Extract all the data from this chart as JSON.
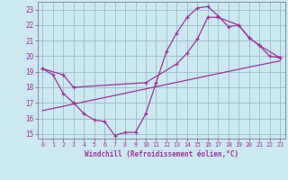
{
  "xlabel": "Windchill (Refroidissement éolien,°C)",
  "bg_color": "#cce8f0",
  "line_color": "#993399",
  "grid_color": "#99bbcc",
  "xlim": [
    -0.5,
    23.5
  ],
  "ylim": [
    14.7,
    23.5
  ],
  "xticks": [
    0,
    1,
    2,
    3,
    4,
    5,
    6,
    7,
    8,
    9,
    10,
    11,
    12,
    13,
    14,
    15,
    16,
    17,
    18,
    19,
    20,
    21,
    22,
    23
  ],
  "yticks": [
    15,
    16,
    17,
    18,
    19,
    20,
    21,
    22,
    23
  ],
  "line1_x": [
    0,
    1,
    2,
    3,
    4,
    5,
    6,
    7,
    8,
    9,
    10,
    11,
    12,
    13,
    14,
    15,
    16,
    17,
    18,
    19,
    20,
    21,
    22,
    23
  ],
  "line1_y": [
    19.2,
    18.8,
    17.6,
    17.0,
    16.3,
    15.9,
    15.8,
    14.9,
    15.1,
    15.1,
    16.3,
    18.3,
    20.3,
    21.5,
    22.5,
    23.1,
    23.2,
    22.6,
    21.9,
    22.0,
    21.2,
    20.7,
    20.0,
    19.9
  ],
  "line2_x": [
    0,
    2,
    3,
    10,
    13,
    14,
    15,
    16,
    17,
    19,
    20,
    21,
    23
  ],
  "line2_y": [
    19.2,
    18.8,
    18.0,
    18.3,
    19.5,
    20.2,
    21.1,
    22.5,
    22.5,
    22.0,
    21.2,
    20.7,
    19.9
  ],
  "line3_x": [
    0,
    5,
    10,
    15,
    20,
    23
  ],
  "line3_y": [
    16.5,
    17.2,
    17.9,
    18.6,
    19.3,
    19.7
  ]
}
